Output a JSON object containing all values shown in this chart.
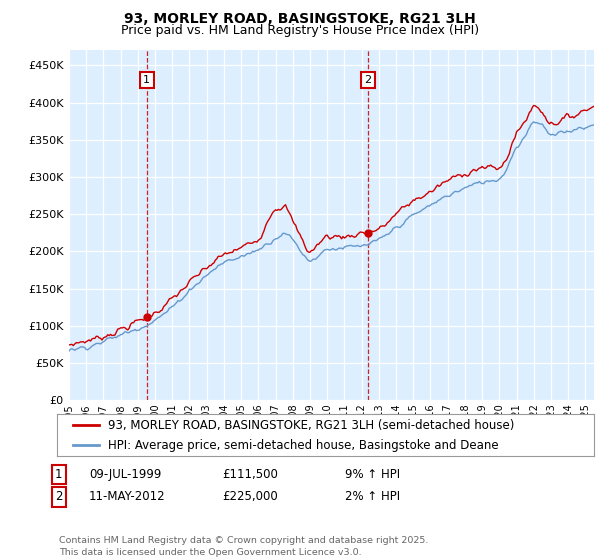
{
  "title": "93, MORLEY ROAD, BASINGSTOKE, RG21 3LH",
  "subtitle": "Price paid vs. HM Land Registry's House Price Index (HPI)",
  "ytick_values": [
    0,
    50000,
    100000,
    150000,
    200000,
    250000,
    300000,
    350000,
    400000,
    450000
  ],
  "ylim": [
    0,
    470000
  ],
  "xlim_start": 1995.0,
  "xlim_end": 2025.5,
  "background_color": "#ddeeff",
  "grid_color": "#ffffff",
  "line1_color": "#cc0000",
  "line2_color": "#6699cc",
  "vline_color": "#cc0000",
  "marker1_x": 1999.52,
  "marker2_x": 2012.36,
  "marker1_y": 111500,
  "marker2_y": 225000,
  "legend_line1": "93, MORLEY ROAD, BASINGSTOKE, RG21 3LH (semi-detached house)",
  "legend_line2": "HPI: Average price, semi-detached house, Basingstoke and Deane",
  "annotation1_label": "1",
  "annotation2_label": "2",
  "table_row1": [
    "1",
    "09-JUL-1999",
    "£111,500",
    "9% ↑ HPI"
  ],
  "table_row2": [
    "2",
    "11-MAY-2012",
    "£225,000",
    "2% ↑ HPI"
  ],
  "footer": "Contains HM Land Registry data © Crown copyright and database right 2025.\nThis data is licensed under the Open Government Licence v3.0.",
  "title_fontsize": 10,
  "subtitle_fontsize": 9,
  "tick_fontsize": 8,
  "legend_fontsize": 8.5
}
